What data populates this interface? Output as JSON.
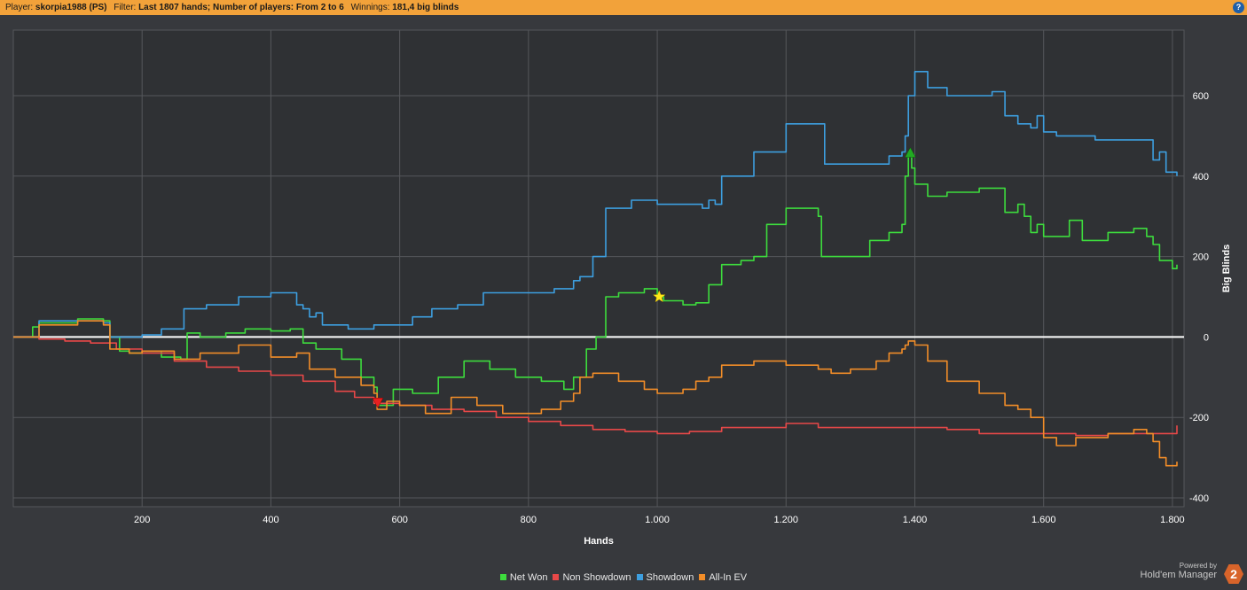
{
  "header": {
    "player_label": "Player:",
    "player_value": "skorpia1988 (PS)",
    "filter_label": "Filter:",
    "filter_value": "Last 1807 hands; Number of players: From 2 to 6",
    "winnings_label": "Winnings:",
    "winnings_value": "181,4 big blinds",
    "help_icon": "?"
  },
  "branding": {
    "powered_by": "Powered by",
    "product": "Hold'em Manager",
    "logo_text": "2"
  },
  "colors": {
    "background": "#37393d",
    "header_bar": "#f2a23a",
    "grid": "#585a5e",
    "zero_line": "#ffffff"
  },
  "chart_data": {
    "type": "line",
    "xlabel": "Hands",
    "ylabel": "Big Blinds",
    "xlim": [
      0,
      1807
    ],
    "ylim": [
      -420,
      720
    ],
    "x_ticks": [
      200,
      400,
      600,
      800,
      1000,
      1200,
      1400,
      1600,
      1800
    ],
    "x_tick_labels": [
      "200",
      "400",
      "600",
      "800",
      "1.000",
      "1.200",
      "1.400",
      "1.600",
      "1.800"
    ],
    "y_ticks": [
      600,
      400,
      200,
      0,
      -200,
      -400
    ],
    "y_tick_labels": [
      "600",
      "400",
      "200",
      "0",
      "-200",
      "-400"
    ],
    "grid": true,
    "legend_position": "bottom-center",
    "series": [
      {
        "name": "Net Won",
        "color": "#3ddc3d",
        "x": [
          0,
          15,
          30,
          40,
          60,
          100,
          140,
          150,
          165,
          180,
          200,
          230,
          260,
          270,
          290,
          330,
          360,
          400,
          430,
          450,
          470,
          510,
          540,
          560,
          565,
          590,
          620,
          660,
          700,
          740,
          780,
          820,
          855,
          870,
          890,
          905,
          920,
          940,
          980,
          1000,
          1010,
          1040,
          1060,
          1080,
          1100,
          1130,
          1150,
          1170,
          1200,
          1250,
          1255,
          1300,
          1330,
          1360,
          1380,
          1385,
          1390,
          1395,
          1400,
          1420,
          1450,
          1500,
          1540,
          1560,
          1570,
          1580,
          1590,
          1600,
          1630,
          1640,
          1660,
          1700,
          1740,
          1760,
          1770,
          1780,
          1800,
          1807
        ],
        "values": [
          0,
          0,
          25,
          35,
          35,
          45,
          40,
          0,
          -35,
          -40,
          -35,
          -50,
          -55,
          10,
          0,
          10,
          20,
          15,
          20,
          -15,
          -30,
          -55,
          -100,
          -125,
          -170,
          -130,
          -140,
          -100,
          -60,
          -80,
          -100,
          -110,
          -130,
          -100,
          -30,
          0,
          100,
          110,
          120,
          100,
          90,
          80,
          85,
          130,
          180,
          190,
          200,
          280,
          320,
          300,
          200,
          200,
          240,
          260,
          280,
          400,
          460,
          420,
          380,
          350,
          360,
          370,
          310,
          330,
          300,
          260,
          280,
          250,
          250,
          290,
          240,
          260,
          270,
          250,
          230,
          190,
          170,
          180
        ]
      },
      {
        "name": "Non Showdown",
        "color": "#e84848",
        "x": [
          0,
          40,
          80,
          120,
          160,
          200,
          250,
          300,
          350,
          400,
          450,
          500,
          530,
          560,
          600,
          650,
          700,
          750,
          800,
          850,
          900,
          950,
          1000,
          1050,
          1100,
          1150,
          1200,
          1250,
          1300,
          1350,
          1400,
          1450,
          1500,
          1550,
          1600,
          1650,
          1700,
          1750,
          1807
        ],
        "values": [
          0,
          -5,
          -10,
          -15,
          -30,
          -40,
          -60,
          -75,
          -85,
          -95,
          -110,
          -135,
          -150,
          -165,
          -170,
          -180,
          -185,
          -200,
          -210,
          -220,
          -230,
          -235,
          -240,
          -235,
          -225,
          -225,
          -215,
          -225,
          -225,
          -225,
          -225,
          -230,
          -240,
          -240,
          -240,
          -245,
          -240,
          -240,
          -220
        ]
      },
      {
        "name": "Showdown",
        "color": "#3d9fe0",
        "x": [
          0,
          40,
          100,
          140,
          150,
          200,
          230,
          265,
          300,
          350,
          400,
          440,
          450,
          460,
          470,
          480,
          520,
          530,
          560,
          620,
          650,
          690,
          730,
          800,
          840,
          870,
          880,
          900,
          920,
          960,
          1000,
          1040,
          1070,
          1080,
          1090,
          1100,
          1120,
          1150,
          1180,
          1200,
          1250,
          1260,
          1300,
          1360,
          1380,
          1385,
          1390,
          1400,
          1420,
          1450,
          1500,
          1520,
          1540,
          1560,
          1580,
          1590,
          1600,
          1620,
          1650,
          1680,
          1740,
          1770,
          1780,
          1790,
          1807
        ],
        "values": [
          0,
          40,
          40,
          35,
          0,
          5,
          20,
          70,
          80,
          100,
          110,
          80,
          70,
          50,
          60,
          30,
          20,
          20,
          30,
          50,
          70,
          80,
          110,
          110,
          120,
          140,
          150,
          200,
          320,
          340,
          330,
          330,
          320,
          340,
          330,
          400,
          400,
          460,
          460,
          530,
          530,
          430,
          430,
          450,
          460,
          500,
          600,
          660,
          620,
          600,
          600,
          610,
          550,
          530,
          520,
          550,
          510,
          500,
          500,
          490,
          490,
          440,
          460,
          410,
          400
        ]
      },
      {
        "name": "All-In EV",
        "color": "#f28d28",
        "x": [
          0,
          40,
          100,
          140,
          150,
          180,
          200,
          250,
          290,
          350,
          400,
          440,
          460,
          500,
          540,
          560,
          565,
          580,
          600,
          640,
          680,
          720,
          760,
          820,
          850,
          870,
          880,
          900,
          940,
          980,
          1000,
          1040,
          1060,
          1080,
          1100,
          1150,
          1200,
          1250,
          1270,
          1300,
          1340,
          1360,
          1380,
          1385,
          1390,
          1400,
          1420,
          1450,
          1500,
          1540,
          1560,
          1580,
          1600,
          1620,
          1650,
          1700,
          1740,
          1760,
          1770,
          1780,
          1790,
          1807
        ],
        "values": [
          0,
          30,
          40,
          30,
          -30,
          -40,
          -35,
          -55,
          -40,
          -20,
          -50,
          -40,
          -80,
          -100,
          -120,
          -140,
          -180,
          -160,
          -170,
          -190,
          -150,
          -170,
          -190,
          -180,
          -160,
          -140,
          -100,
          -90,
          -110,
          -130,
          -140,
          -130,
          -110,
          -100,
          -70,
          -60,
          -70,
          -80,
          -90,
          -80,
          -60,
          -40,
          -30,
          -20,
          -10,
          -20,
          -60,
          -110,
          -140,
          -170,
          -180,
          -200,
          -250,
          -270,
          -250,
          -240,
          -230,
          -240,
          -260,
          -300,
          -320,
          -310
        ]
      }
    ],
    "markers": [
      {
        "type": "star",
        "series": "Net Won",
        "x": 1003,
        "y": 100,
        "color": "#ffe81a"
      },
      {
        "type": "triangle-down",
        "series": "All-In EV",
        "x": 566,
        "y": -165,
        "color": "#e82020"
      },
      {
        "type": "triangle-up",
        "series": "Net Won",
        "x": 1393,
        "y": 460,
        "color": "#22aa22"
      }
    ]
  },
  "legend": [
    {
      "label": "Net Won",
      "color": "#3ddc3d"
    },
    {
      "label": "Non Showdown",
      "color": "#e84848"
    },
    {
      "label": "Showdown",
      "color": "#3d9fe0"
    },
    {
      "label": "All-In EV",
      "color": "#f28d28"
    }
  ]
}
